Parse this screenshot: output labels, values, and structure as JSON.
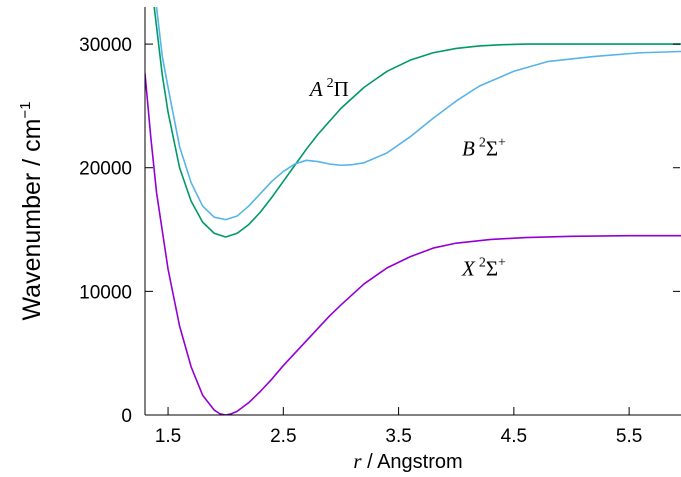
{
  "chart_data": {
    "type": "line",
    "title": "",
    "xlabel": {
      "var": "r",
      "rest": " / Angstrom"
    },
    "ylabel": {
      "main": "Wavenumber / cm",
      "exp": "−1"
    },
    "xlim": [
      1.3,
      5.95
    ],
    "ylim": [
      0,
      33000
    ],
    "xticks": [
      1.5,
      2.5,
      3.5,
      4.5,
      5.5
    ],
    "xtick_labels": [
      "1.5",
      "2.5",
      "3.5",
      "4.5",
      "5.5"
    ],
    "yticks": [
      0,
      10000,
      20000,
      30000
    ],
    "ytick_labels": [
      "0",
      "10000",
      "20000",
      "30000"
    ],
    "grid": false,
    "series": [
      {
        "name": "A 2Π",
        "label": {
          "italic": "A",
          "sup": "2",
          "rest": "Π"
        },
        "label_anchor": [
          2.73,
          25800
        ],
        "color": "#009966",
        "x": [
          1.38,
          1.45,
          1.5,
          1.6,
          1.7,
          1.8,
          1.9,
          2.0,
          2.1,
          2.2,
          2.3,
          2.4,
          2.5,
          2.6,
          2.7,
          2.8,
          3.0,
          3.2,
          3.4,
          3.6,
          3.8,
          4.0,
          4.2,
          4.4,
          4.6,
          5.0,
          5.5,
          5.95
        ],
        "y": [
          33000,
          27500,
          24500,
          20000,
          17300,
          15600,
          14700,
          14400,
          14700,
          15400,
          16400,
          17600,
          18900,
          20200,
          21500,
          22700,
          24800,
          26500,
          27800,
          28700,
          29300,
          29650,
          29850,
          29950,
          30000,
          30000,
          30000,
          30000
        ]
      },
      {
        "name": "B 2Σ+",
        "label": {
          "italic": "B",
          "sup": "2",
          "rest": "Σ",
          "rest_sup": "+"
        },
        "label_anchor": [
          4.05,
          21000
        ],
        "color": "#56b4e9",
        "x": [
          1.4,
          1.45,
          1.5,
          1.6,
          1.7,
          1.8,
          1.9,
          2.0,
          2.1,
          2.2,
          2.3,
          2.4,
          2.5,
          2.6,
          2.7,
          2.8,
          2.9,
          3.0,
          3.1,
          3.2,
          3.4,
          3.6,
          3.8,
          4.0,
          4.2,
          4.5,
          4.8,
          5.2,
          5.6,
          5.95
        ],
        "y": [
          33000,
          29000,
          26500,
          21700,
          18800,
          16900,
          16000,
          15800,
          16100,
          16900,
          17900,
          18900,
          19700,
          20300,
          20600,
          20500,
          20300,
          20200,
          20250,
          20400,
          21200,
          22500,
          24000,
          25400,
          26600,
          27800,
          28600,
          29000,
          29300,
          29400
        ]
      },
      {
        "name": "X 2Σ+",
        "label": {
          "italic": "X",
          "sup": "2",
          "rest": "Σ",
          "rest_sup": "+"
        },
        "label_anchor": [
          4.05,
          11300
        ],
        "color": "#9400d3",
        "x": [
          1.3,
          1.35,
          1.4,
          1.5,
          1.6,
          1.7,
          1.8,
          1.9,
          1.95,
          2.0,
          2.05,
          2.1,
          2.2,
          2.3,
          2.4,
          2.5,
          2.6,
          2.7,
          2.8,
          2.9,
          3.0,
          3.2,
          3.4,
          3.6,
          3.8,
          4.0,
          4.3,
          4.6,
          5.0,
          5.5,
          5.95
        ],
        "y": [
          27600,
          22500,
          18000,
          11800,
          7200,
          3900,
          1600,
          400,
          100,
          0,
          100,
          300,
          1000,
          1900,
          2900,
          4000,
          5000,
          6000,
          7000,
          8000,
          8900,
          10600,
          11900,
          12800,
          13500,
          13900,
          14200,
          14350,
          14450,
          14500,
          14500
        ]
      }
    ]
  }
}
